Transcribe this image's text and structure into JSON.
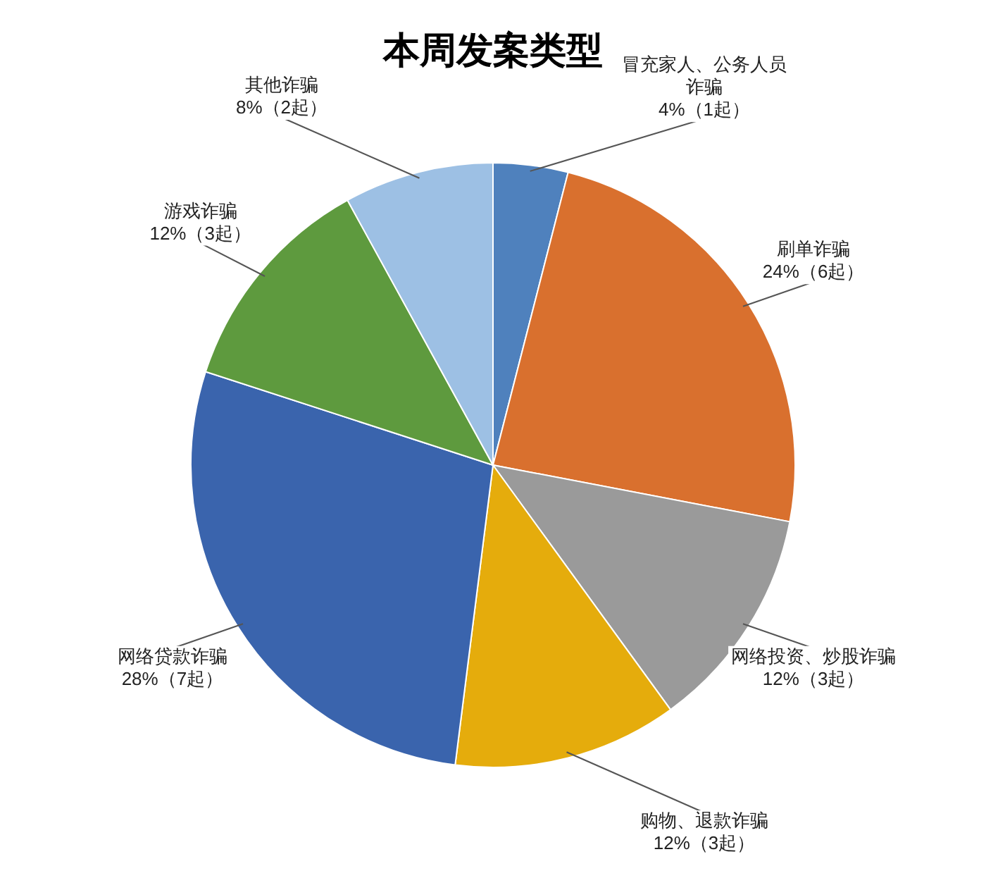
{
  "chart_data": {
    "type": "pie",
    "title": "本周发案类型",
    "categories": [
      "冒充家人、公务人员诈骗",
      "刷单诈骗",
      "网络投资、炒股诈骗",
      "购物、退款诈骗",
      "网络贷款诈骗",
      "游戏诈骗",
      "其他诈骗"
    ],
    "values": [
      1,
      6,
      3,
      3,
      7,
      3,
      2
    ],
    "value_labels": [
      "4%（1起）",
      "24%（6起）",
      "12%（3起）",
      "12%（3起）",
      "28%（7起）",
      "12%（3起）",
      "8%（2起）"
    ],
    "colors": [
      "#4f81bd",
      "#d9702e",
      "#9a9a9a",
      "#e5ac0c",
      "#3a64ad",
      "#5e9a3e",
      "#9dc0e4"
    ],
    "legend": false
  }
}
